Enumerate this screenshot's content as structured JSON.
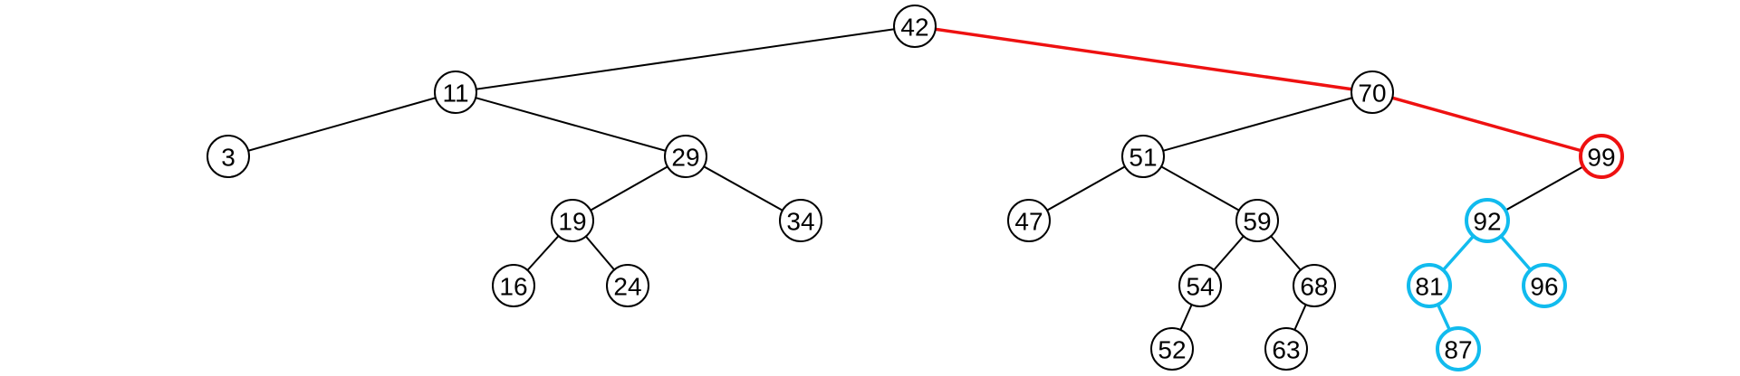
{
  "colors": {
    "default": "#000000",
    "path": "#ee1111",
    "subtree": "#11bbee"
  },
  "tree": {
    "nodes": [
      {
        "id": "42",
        "label": "42",
        "depth": 0,
        "state": "default"
      },
      {
        "id": "11",
        "label": "11",
        "depth": 1,
        "state": "default"
      },
      {
        "id": "70",
        "label": "70",
        "depth": 1,
        "state": "default"
      },
      {
        "id": "3",
        "label": "3",
        "depth": 2,
        "state": "default"
      },
      {
        "id": "29",
        "label": "29",
        "depth": 2,
        "state": "default"
      },
      {
        "id": "51",
        "label": "51",
        "depth": 2,
        "state": "default"
      },
      {
        "id": "99",
        "label": "99",
        "depth": 2,
        "state": "path"
      },
      {
        "id": "19",
        "label": "19",
        "depth": 3,
        "state": "default"
      },
      {
        "id": "34",
        "label": "34",
        "depth": 3,
        "state": "default"
      },
      {
        "id": "47",
        "label": "47",
        "depth": 3,
        "state": "default"
      },
      {
        "id": "59",
        "label": "59",
        "depth": 3,
        "state": "default"
      },
      {
        "id": "92",
        "label": "92",
        "depth": 3,
        "state": "subtree"
      },
      {
        "id": "16",
        "label": "16",
        "depth": 4,
        "state": "default"
      },
      {
        "id": "24",
        "label": "24",
        "depth": 4,
        "state": "default"
      },
      {
        "id": "54",
        "label": "54",
        "depth": 4,
        "state": "default"
      },
      {
        "id": "68",
        "label": "68",
        "depth": 4,
        "state": "default"
      },
      {
        "id": "81",
        "label": "81",
        "depth": 4,
        "state": "subtree"
      },
      {
        "id": "96",
        "label": "96",
        "depth": 4,
        "state": "subtree"
      },
      {
        "id": "52",
        "label": "52",
        "depth": 5,
        "state": "default"
      },
      {
        "id": "63",
        "label": "63",
        "depth": 5,
        "state": "default"
      },
      {
        "id": "87",
        "label": "87",
        "depth": 5,
        "state": "subtree"
      }
    ],
    "edges": [
      {
        "from": "42",
        "to": "11",
        "state": "default"
      },
      {
        "from": "42",
        "to": "70",
        "state": "path"
      },
      {
        "from": "11",
        "to": "3",
        "state": "default"
      },
      {
        "from": "11",
        "to": "29",
        "state": "default"
      },
      {
        "from": "70",
        "to": "51",
        "state": "default"
      },
      {
        "from": "70",
        "to": "99",
        "state": "path"
      },
      {
        "from": "29",
        "to": "19",
        "state": "default"
      },
      {
        "from": "29",
        "to": "34",
        "state": "default"
      },
      {
        "from": "51",
        "to": "47",
        "state": "default"
      },
      {
        "from": "51",
        "to": "59",
        "state": "default"
      },
      {
        "from": "99",
        "to": "92",
        "state": "default"
      },
      {
        "from": "19",
        "to": "16",
        "state": "default"
      },
      {
        "from": "19",
        "to": "24",
        "state": "default"
      },
      {
        "from": "59",
        "to": "54",
        "state": "default"
      },
      {
        "from": "59",
        "to": "68",
        "state": "default"
      },
      {
        "from": "92",
        "to": "81",
        "state": "subtree"
      },
      {
        "from": "92",
        "to": "96",
        "state": "subtree"
      },
      {
        "from": "54",
        "to": "52",
        "state": "default"
      },
      {
        "from": "68",
        "to": "63",
        "state": "default"
      },
      {
        "from": "81",
        "to": "87",
        "state": "subtree"
      }
    ]
  }
}
